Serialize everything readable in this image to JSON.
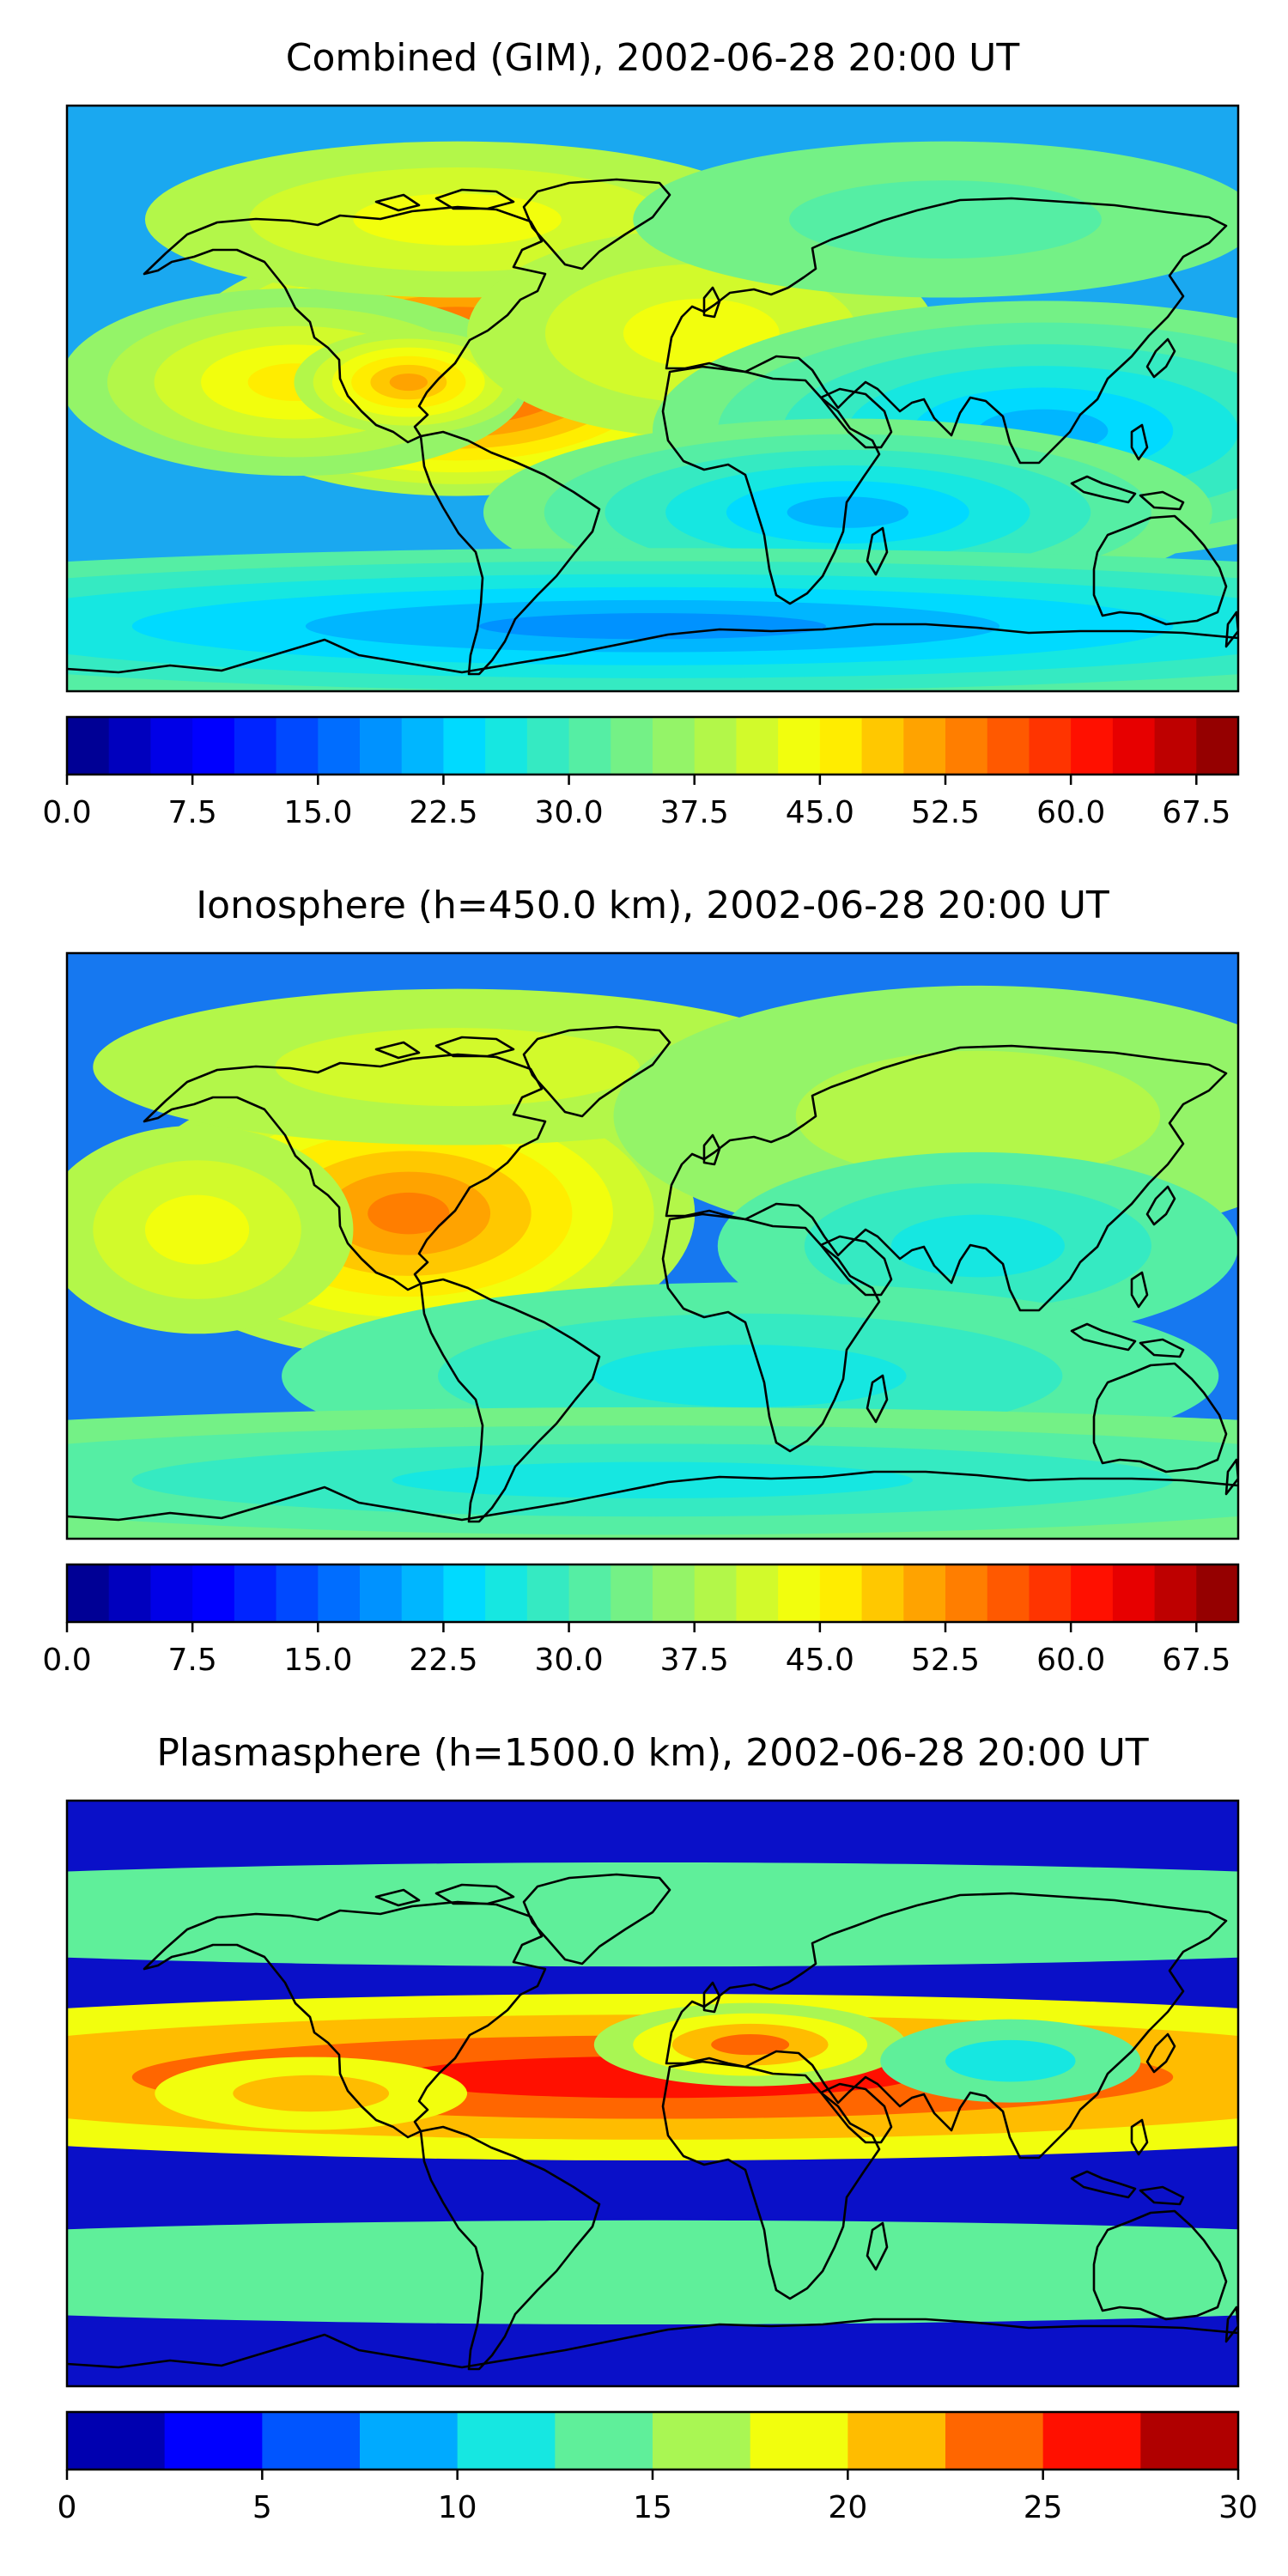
{
  "panels": [
    {
      "id": "combined",
      "title": "Combined (GIM), 2002-06-28 20:00 UT",
      "levels": [
        0,
        2.5,
        5,
        7.5,
        10,
        12.5,
        15,
        17.5,
        20,
        22.5,
        25,
        27.5,
        30,
        32.5,
        35,
        37.5,
        40,
        42.5,
        45,
        47.5,
        50,
        52.5,
        55,
        57.5,
        60,
        62.5,
        65,
        67.5,
        70
      ],
      "colorbar_ticks": [
        "0.0",
        "7.5",
        "15.0",
        "22.5",
        "30.0",
        "37.5",
        "45.0",
        "52.5",
        "60.0",
        "67.5"
      ],
      "background": "#1aa8f0",
      "blobs": [
        {
          "lon": -60,
          "lat": 10,
          "sx": 55,
          "sy": 25,
          "v": 28
        },
        {
          "lon": -110,
          "lat": 5,
          "sx": 45,
          "sy": 18,
          "v": 12
        },
        {
          "lon": -75,
          "lat": 5,
          "sx": 22,
          "sy": 10,
          "v": 16
        },
        {
          "lon": -60,
          "lat": 55,
          "sx": 60,
          "sy": 15,
          "v": 8
        },
        {
          "lon": 15,
          "lat": 20,
          "sx": 45,
          "sy": 20,
          "v": 8
        },
        {
          "lon": 120,
          "lat": -10,
          "sx": 75,
          "sy": 25,
          "v": -14
        },
        {
          "lon": 60,
          "lat": -35,
          "sx": 70,
          "sy": 18,
          "v": -14
        },
        {
          "lon": 0,
          "lat": -70,
          "sx": 200,
          "sy": 15,
          "v": -16
        },
        {
          "lon": 90,
          "lat": 55,
          "sx": 60,
          "sy": 15,
          "v": -4
        }
      ]
    },
    {
      "id": "ionosphere",
      "title": "Ionosphere  (h=450.0 km), 2002-06-28 20:00 UT",
      "levels": [
        0,
        2.5,
        5,
        7.5,
        10,
        12.5,
        15,
        17.5,
        20,
        22.5,
        25,
        27.5,
        30,
        32.5,
        35,
        37.5,
        40,
        42.5,
        45,
        47.5,
        50,
        52.5,
        55,
        57.5,
        60,
        62.5,
        65,
        67.5,
        70
      ],
      "colorbar_ticks": [
        "0.0",
        "7.5",
        "15.0",
        "22.5",
        "30.0",
        "37.5",
        "45.0",
        "52.5",
        "60.0",
        "67.5"
      ],
      "background": "#1678f0",
      "blobs": [
        {
          "lon": -75,
          "lat": 10,
          "sx": 55,
          "sy": 28,
          "v": 18
        },
        {
          "lon": -140,
          "lat": 5,
          "sx": 30,
          "sy": 20,
          "v": 8
        },
        {
          "lon": -60,
          "lat": 55,
          "sx": 70,
          "sy": 15,
          "v": 6
        },
        {
          "lon": 100,
          "lat": 40,
          "sx": 70,
          "sy": 25,
          "v": 4
        },
        {
          "lon": 100,
          "lat": 0,
          "sx": 50,
          "sy": 18,
          "v": -8
        },
        {
          "lon": 30,
          "lat": -40,
          "sx": 90,
          "sy": 18,
          "v": -8
        },
        {
          "lon": 0,
          "lat": -72,
          "sx": 200,
          "sy": 14,
          "v": -10
        }
      ]
    },
    {
      "id": "plasmasphere",
      "title": "Plasmasphere (h=1500.0 km), 2002-06-28 20:00 UT",
      "levels": [
        0,
        2.5,
        5,
        7.5,
        10,
        12.5,
        15,
        17.5,
        20,
        22.5,
        25,
        27.5,
        30
      ],
      "colorbar_ticks": [
        "0",
        "5",
        "10",
        "15",
        "20",
        "25",
        "30"
      ],
      "background": "#0a10c8",
      "blobs": [
        {
          "lon": 0,
          "lat": 5,
          "sx": 200,
          "sy": 16,
          "v": 10
        },
        {
          "lon": 30,
          "lat": 15,
          "sx": 30,
          "sy": 8,
          "v": 9
        },
        {
          "lon": -105,
          "lat": 0,
          "sx": 30,
          "sy": 7,
          "v": 5
        },
        {
          "lon": 110,
          "lat": 10,
          "sx": 25,
          "sy": 8,
          "v": -4
        },
        {
          "lon": 0,
          "lat": 55,
          "sx": 200,
          "sy": 10,
          "v": -2
        },
        {
          "lon": 0,
          "lat": -55,
          "sx": 200,
          "sy": 10,
          "v": -2
        }
      ]
    }
  ]
}
